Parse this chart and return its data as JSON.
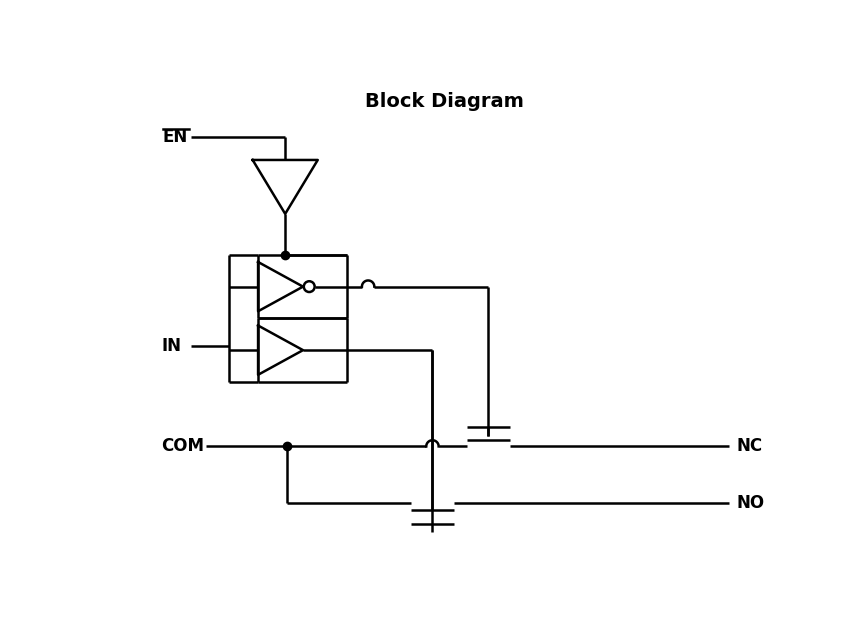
{
  "title": "Block Diagram",
  "title_fontsize": 14,
  "title_fontweight": "bold",
  "bg_color": "#ffffff",
  "line_color": "#000000",
  "line_width": 1.8,
  "label_EN": "EN",
  "label_IN": "IN",
  "label_COM": "COM",
  "label_NC": "NC",
  "label_NO": "NO",
  "figsize": [
    8.68,
    6.4
  ],
  "dpi": 100,
  "xlim": [
    0,
    868
  ],
  "ylim": [
    0,
    640
  ]
}
